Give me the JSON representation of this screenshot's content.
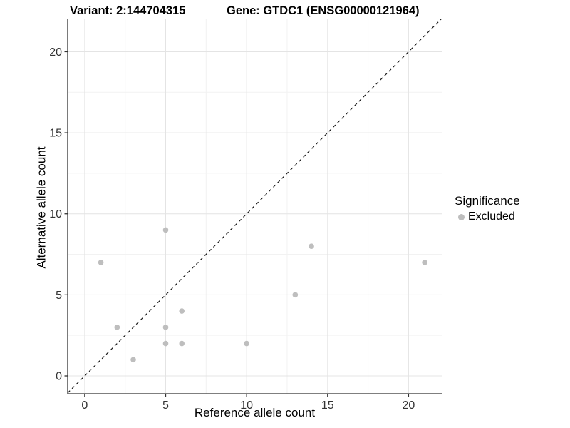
{
  "header": {
    "variant_title": "Variant: 2:144704315",
    "gene_title": "Gene: GTDC1 (ENSG00000121964)"
  },
  "chart_data": {
    "type": "scatter",
    "xlabel": "Reference allele count",
    "ylabel": "Alternative allele count",
    "xlim": [
      -1.05,
      22.05
    ],
    "ylim": [
      -1.1,
      22.0
    ],
    "x_ticks": [
      0,
      5,
      10,
      15,
      20
    ],
    "y_ticks": [
      0,
      5,
      10,
      15,
      20
    ],
    "x_minor_ticks": [
      2.5,
      7.5,
      12.5,
      17.5
    ],
    "y_minor_ticks": [
      2.5,
      7.5,
      12.5,
      17.5
    ],
    "grid": "on",
    "identity_line": {
      "type": "dashed",
      "slope": 1,
      "intercept": 0,
      "color": "#1a1a1a"
    },
    "series": [
      {
        "name": "Excluded",
        "color": "#bebebe",
        "points": [
          [
            1,
            7
          ],
          [
            2,
            3
          ],
          [
            3,
            1
          ],
          [
            5,
            2
          ],
          [
            5,
            3
          ],
          [
            5,
            9
          ],
          [
            6,
            2
          ],
          [
            6,
            4
          ],
          [
            10,
            2
          ],
          [
            13,
            5
          ],
          [
            14,
            8
          ],
          [
            21,
            7
          ]
        ]
      }
    ],
    "legend": {
      "title": "Significance",
      "position": "right"
    },
    "colors": {
      "axis_line": "#333333",
      "tick_label": "#333333",
      "grid_major": "#e4e4e4",
      "grid_minor": "#f2f2f2",
      "background": "#ffffff"
    }
  }
}
